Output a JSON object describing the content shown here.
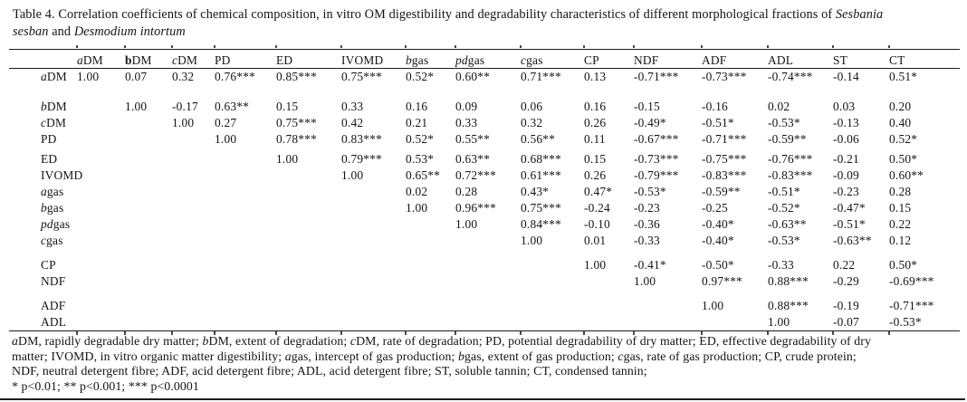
{
  "title": {
    "lines": [
      "Table 4. Correlation coefficients of chemical composition, in vitro OM digestibility and degradability characteristics of different morphological fractions of *Sesbania*",
      "*sesban* and *Desmodium intortum*"
    ]
  },
  "table": {
    "columns": [
      "",
      "*a*DM",
      "**b**DM",
      "*c*DM",
      "PD",
      "ED",
      "IVOMD",
      "*b*gas",
      "*pd*gas",
      "*c*gas",
      "CP",
      "NDF",
      "ADF",
      "ADL",
      "ST",
      "CT"
    ],
    "rows": [
      {
        "label": "*a*DM",
        "gap_before": null,
        "cells": [
          "1.00",
          "0.07",
          "0.32",
          "0.76***",
          "0.85***",
          "0.75***",
          "0.52*",
          "0.60**",
          "0.71***",
          "0.13",
          "-0.71***",
          "-0.73***",
          "-0.74***",
          "-0.14",
          "0.51*"
        ]
      },
      {
        "label": "*b*DM",
        "gap_before": "lg",
        "cells": [
          "",
          "1.00",
          "-0.17",
          "0.63**",
          "0.15",
          "0.33",
          "0.16",
          "0.09",
          "0.06",
          "0.16",
          "-0.15",
          "-0.16",
          "0.02",
          "0.03",
          "0.20"
        ]
      },
      {
        "label": "*c*DM",
        "gap_before": null,
        "cells": [
          "",
          "",
          "1.00",
          "0.27",
          "0.75***",
          "0.42",
          "0.21",
          "0.33",
          "0.32",
          "0.26",
          "-0.49*",
          "-0.51*",
          "-0.53*",
          "-0.13",
          "0.40"
        ]
      },
      {
        "label": "PD",
        "gap_before": null,
        "cells": [
          "",
          "",
          "",
          "1.00",
          "0.78***",
          "0.83***",
          "0.52*",
          "0.55**",
          "0.56**",
          "0.11",
          "-0.67***",
          "-0.71***",
          "-0.59**",
          "-0.06",
          "0.52*"
        ]
      },
      {
        "label": "ED",
        "gap_before": "sm",
        "cells": [
          "",
          "",
          "",
          "",
          "1.00",
          "0.79***",
          "0.53*",
          "0.63**",
          "0.68***",
          "0.15",
          "-0.73***",
          "-0.75***",
          "-0.76***",
          "-0.21",
          "0.50*"
        ]
      },
      {
        "label": "IVOMD",
        "gap_before": null,
        "cells": [
          "",
          "",
          "",
          "",
          "",
          "1.00",
          "0.65**",
          "0.72***",
          "0.61***",
          "0.26",
          "-0.79***",
          "-0.83***",
          "-0.83***",
          "-0.09",
          "0.60**"
        ]
      },
      {
        "label": "*a*gas",
        "gap_before": null,
        "cells": [
          "",
          "",
          "",
          "",
          "",
          "",
          "0.02",
          "0.28",
          "0.43*",
          "0.47*",
          "-0.53*",
          "-0.59**",
          "-0.51*",
          "-0.23",
          "0.28"
        ]
      },
      {
        "label": "*b*gas",
        "gap_before": null,
        "cells": [
          "",
          "",
          "",
          "",
          "",
          "",
          "1.00",
          "0.96***",
          "0.75***",
          "-0.24",
          "-0.23",
          "-0.25",
          "-0.52*",
          "-0.47*",
          "0.15"
        ]
      },
      {
        "label": "*pd*gas",
        "gap_before": null,
        "cells": [
          "",
          "",
          "",
          "",
          "",
          "",
          "",
          "1.00",
          "0.84***",
          "-0.10",
          "-0.36",
          "-0.40*",
          "-0.63**",
          "-0.51*",
          "0.22"
        ]
      },
      {
        "label": "*c*gas",
        "gap_before": null,
        "cells": [
          "",
          "",
          "",
          "",
          "",
          "",
          "",
          "",
          "1.00",
          "0.01",
          "-0.33",
          "-0.40*",
          "-0.53*",
          "-0.63**",
          "0.12"
        ]
      },
      {
        "label": "CP",
        "gap_before": "md",
        "cells": [
          "",
          "",
          "",
          "",
          "",
          "",
          "",
          "",
          "",
          "1.00",
          "-0.41*",
          "-0.50*",
          "-0.33",
          "0.22",
          "0.50*"
        ]
      },
      {
        "label": "NDF",
        "gap_before": null,
        "cells": [
          "",
          "",
          "",
          "",
          "",
          "",
          "",
          "",
          "",
          "",
          "1.00",
          "0.97***",
          "0.88***",
          "-0.29",
          "-0.69***"
        ]
      },
      {
        "label": "ADF",
        "gap_before": "md",
        "cells": [
          "",
          "",
          "",
          "",
          "",
          "",
          "",
          "",
          "",
          "",
          "",
          "1.00",
          "0.88***",
          "-0.19",
          "-0.71***"
        ]
      },
      {
        "label": "ADL",
        "gap_before": null,
        "cells": [
          "",
          "",
          "",
          "",
          "",
          "",
          "",
          "",
          "",
          "",
          "",
          "",
          "1.00",
          "-0.07",
          "-0.53*"
        ]
      }
    ]
  },
  "footnote": {
    "lines": [
      "*a*DM, rapidly degradable dry matter; *b*DM, extent of degradation; *c*DM, rate of degradation; PD, potential degradability of dry matter; ED, effective degradability of dry",
      "matter; IVOMD, in vitro organic matter digestibility; *a*gas, intercept of gas production; *b*gas, extent of gas production; *c*gas, rate of gas production; CP, crude protein;",
      "NDF, neutral detergent fibre; ADF, acid detergent fibre; ADL, acid detergent fibre; ST, soluble tannin; CT, condensed tannin;"
    ],
    "significance": "* p<0.01; ** p<0.001; *** p<0.0001"
  }
}
